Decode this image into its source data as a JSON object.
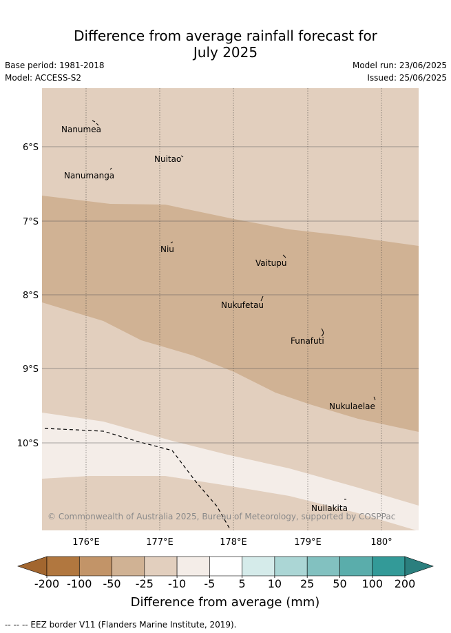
{
  "header": {
    "title_line1": "Difference from average rainfall forecast for",
    "title_line2": "July 2025",
    "base_period": "Base period: 1981-2018",
    "model": "Model: ACCESS-S2",
    "model_run": "Model run: 23/06/2025",
    "issued": "Issued: 25/06/2025"
  },
  "map": {
    "lat_labels": [
      "6°S",
      "7°S",
      "8°S",
      "9°S",
      "10°S"
    ],
    "lon_labels": [
      "176°E",
      "177°E",
      "178°E",
      "179°E",
      "180°"
    ],
    "places": [
      "Nanumea",
      "Nuitao",
      "Nanumanga",
      "Niu",
      "Vaitupu",
      "Nukufetau",
      "Funafuti",
      "Nukulaelae",
      "Nuilakita"
    ],
    "copyright": "© Commonwealth of Australia 2025, Bureau of Meteorology, supported by COSPPac",
    "band_colors": {
      "minus_25_to_minus_10": "#e2cfbe",
      "minus_50_to_minus_25": "#d0b294",
      "minus_10_to_minus_5": "#f4ede8"
    }
  },
  "colorbar": {
    "ticks": [
      "-200",
      "-100",
      "-50",
      "-25",
      "-10",
      "-5",
      "5",
      "10",
      "25",
      "50",
      "100",
      "200"
    ],
    "colors": [
      "#a2662f",
      "#b1773f",
      "#c29468",
      "#d0b294",
      "#e2cfbe",
      "#f4ede8",
      "#ffffff",
      "#d5ebea",
      "#abd6d5",
      "#82c1c0",
      "#5aadab",
      "#339a98",
      "#2b7f7e"
    ],
    "label": "Difference from average (mm)"
  },
  "footnote": "-- -- -- EEZ border V11 (Flanders Marine Institute, 2019)."
}
